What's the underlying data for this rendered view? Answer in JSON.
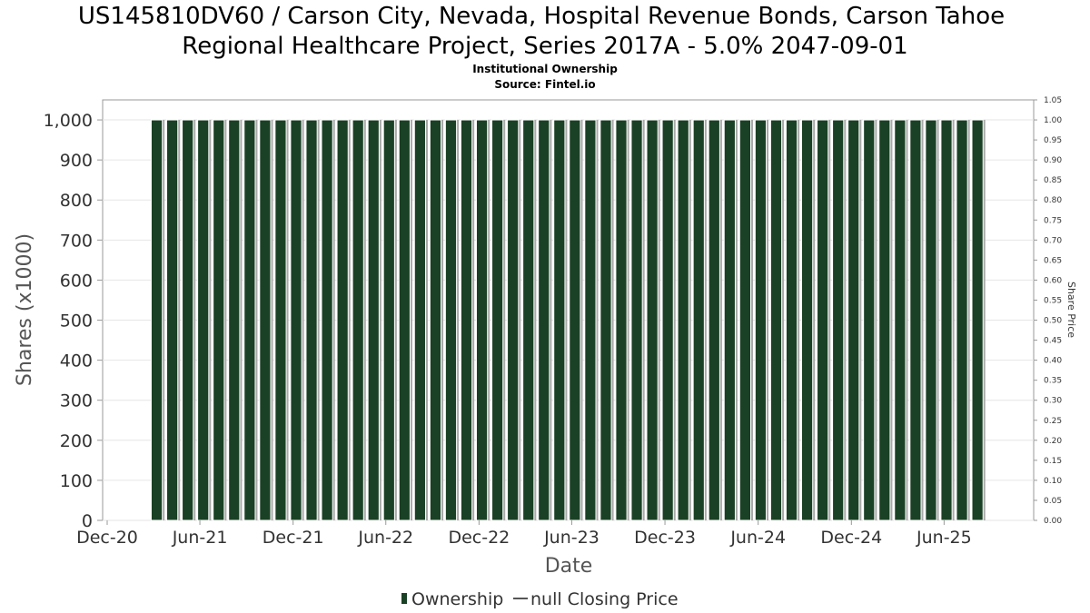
{
  "chart_data": {
    "type": "bar",
    "title_line1": "US145810DV60 / Carson City, Nevada, Hospital Revenue Bonds, Carson Tahoe",
    "title_line2": "Regional Healthcare Project, Series 2017A - 5.0% 2047-09-01",
    "subtitle_line1": "Institutional Ownership",
    "subtitle_line2": "Source: Fintel.io",
    "xlabel": "Date",
    "ylabel": "Shares (x1000)",
    "y2label": "Share Price",
    "ylim": [
      0,
      1050
    ],
    "y2lim": [
      0,
      1.05
    ],
    "x_start": "2020-12-01",
    "x_end": "2025-12-01",
    "bars_start": "2021-03-01",
    "bar_count": 54,
    "bar_spacing_days": 30.4,
    "values": [
      1000,
      1000,
      1000,
      1000,
      1000,
      1000,
      1000,
      1000,
      1000,
      1000,
      1000,
      1000,
      1000,
      1000,
      1000,
      1000,
      1000,
      1000,
      1000,
      1000,
      1000,
      1000,
      1000,
      1000,
      1000,
      1000,
      1000,
      1000,
      1000,
      1000,
      1000,
      1000,
      1000,
      1000,
      1000,
      1000,
      1000,
      1000,
      1000,
      1000,
      1000,
      1000,
      1000,
      1000,
      1000,
      1000,
      1000,
      1000,
      1000,
      1000,
      1000,
      1000,
      1000,
      1000
    ],
    "x_ticks": [
      {
        "label": "Dec-20",
        "date": "2020-12-01"
      },
      {
        "label": "Jun-21",
        "date": "2021-06-01"
      },
      {
        "label": "Dec-21",
        "date": "2021-12-01"
      },
      {
        "label": "Jun-22",
        "date": "2022-06-01"
      },
      {
        "label": "Dec-22",
        "date": "2022-12-01"
      },
      {
        "label": "Jun-23",
        "date": "2023-06-01"
      },
      {
        "label": "Dec-23",
        "date": "2023-12-01"
      },
      {
        "label": "Jun-24",
        "date": "2024-06-01"
      },
      {
        "label": "Dec-24",
        "date": "2024-12-01"
      },
      {
        "label": "Jun-25",
        "date": "2025-06-01"
      }
    ],
    "y_ticks": [
      {
        "label": "0",
        "value": 0
      },
      {
        "label": "100",
        "value": 100
      },
      {
        "label": "200",
        "value": 200
      },
      {
        "label": "300",
        "value": 300
      },
      {
        "label": "400",
        "value": 400
      },
      {
        "label": "500",
        "value": 500
      },
      {
        "label": "600",
        "value": 600
      },
      {
        "label": "700",
        "value": 700
      },
      {
        "label": "800",
        "value": 800
      },
      {
        "label": "900",
        "value": 900
      },
      {
        "label": "1,000",
        "value": 1000
      }
    ],
    "y2_ticks": [
      "0.00",
      "0.05",
      "0.10",
      "0.15",
      "0.20",
      "0.25",
      "0.30",
      "0.35",
      "0.40",
      "0.45",
      "0.50",
      "0.55",
      "0.60",
      "0.65",
      "0.70",
      "0.75",
      "0.80",
      "0.85",
      "0.90",
      "0.95",
      "1.00",
      "1.05"
    ],
    "legend": [
      {
        "name": "Ownership",
        "color": "#1a4125"
      },
      {
        "name": "null Closing Price",
        "color": "#555555"
      }
    ],
    "grid": true,
    "legend_position": "bottom-center"
  }
}
